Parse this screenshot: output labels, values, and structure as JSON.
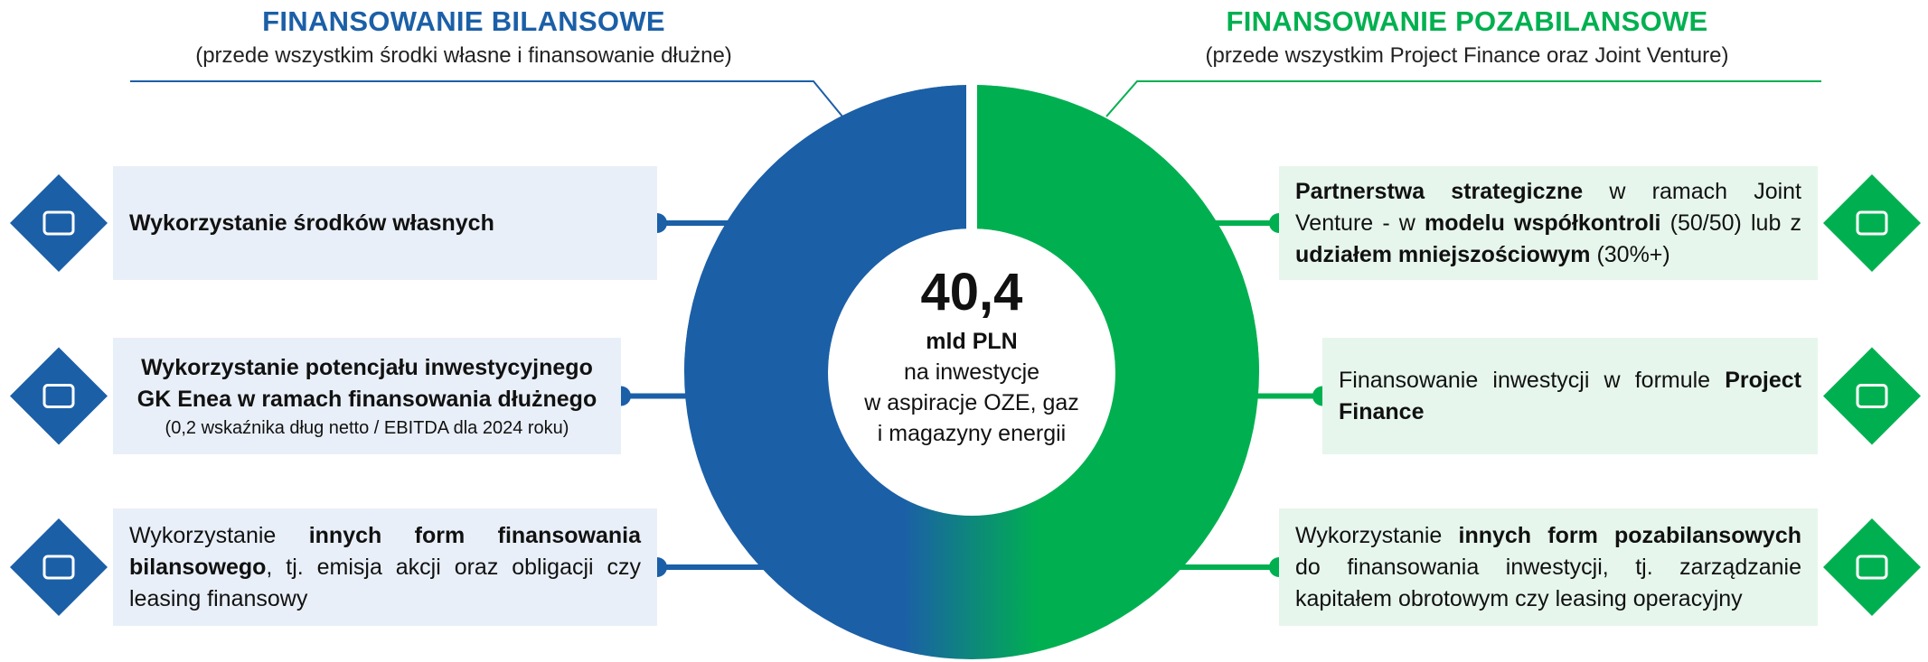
{
  "left": {
    "title": "FINANSOWANIE BILANSOWE",
    "subtitle": "(przede wszystkim środki własne i finansowanie dłużne)",
    "items": [
      {
        "parts": [
          {
            "text": "Wykorzystanie środków własnych",
            "bold": true
          }
        ]
      },
      {
        "parts": [
          {
            "text": "Wykorzystanie potencjału inwestycyjnego GK Enea w ramach finansowania dłużnego",
            "bold": true
          }
        ],
        "note": "(0,2 wskaźnika dług netto / EBITDA dla 2024 roku)"
      },
      {
        "parts": [
          {
            "text": "Wykorzystanie ",
            "bold": false
          },
          {
            "text": "innych form finansowania bilansowego",
            "bold": true
          },
          {
            "text": ", tj. emisja akcji oraz obligacji czy leasing finansowy",
            "bold": false
          }
        ]
      }
    ]
  },
  "right": {
    "title": "FINANSOWANIE POZABILANSOWE",
    "subtitle": "(przede wszystkim Project Finance oraz Joint Venture)",
    "items": [
      {
        "parts": [
          {
            "text": "Partnerstwa strategiczne",
            "bold": true
          },
          {
            "text": " w ramach Joint Venture - w ",
            "bold": false
          },
          {
            "text": "modelu współkontroli",
            "bold": true
          },
          {
            "text": " (50/50) lub z ",
            "bold": false
          },
          {
            "text": "udziałem mniejszościowym",
            "bold": true
          },
          {
            "text": " (30%+)",
            "bold": false
          }
        ]
      },
      {
        "parts": [
          {
            "text": "Finansowanie inwestycji w formule ",
            "bold": false
          },
          {
            "text": "Project Finance",
            "bold": true
          }
        ]
      },
      {
        "parts": [
          {
            "text": "Wykorzystanie ",
            "bold": false
          },
          {
            "text": "innych form pozabilansowych",
            "bold": true
          },
          {
            "text": " do finansowania inwestycji, tj. zarządzanie kapitałem obrotowym czy leasing operacyjny",
            "bold": false
          }
        ]
      }
    ]
  },
  "center": {
    "value": "40,4",
    "unit": "mld PLN",
    "lines": [
      "na inwestycje",
      "w aspiracje OZE, gaz",
      "i magazyny energii"
    ]
  }
}
